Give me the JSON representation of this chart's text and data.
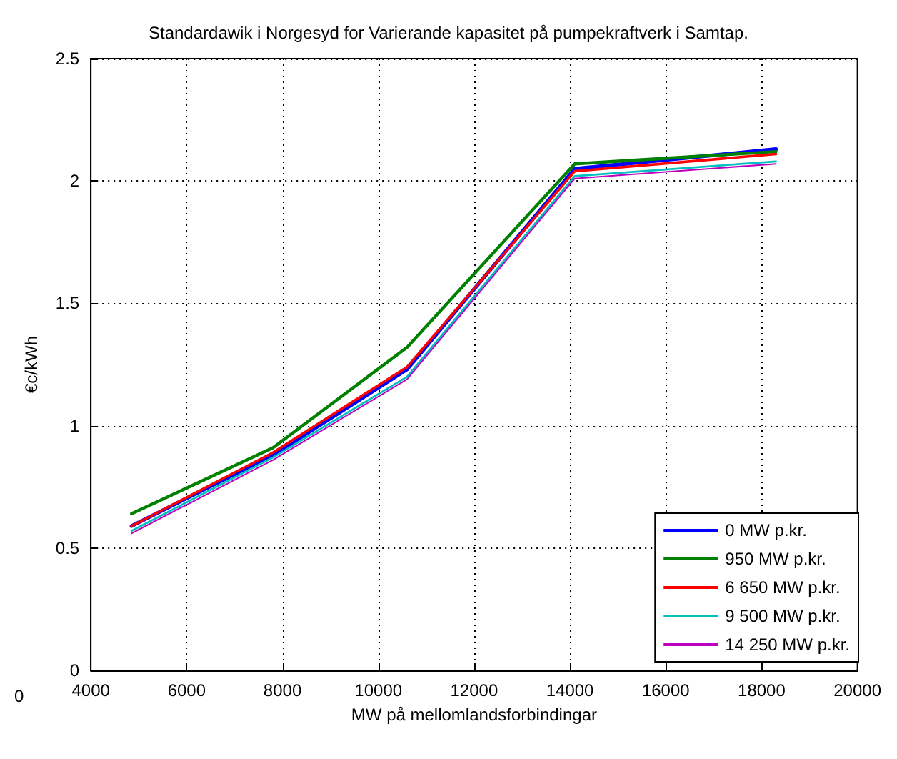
{
  "chart_data": {
    "type": "line",
    "title": "Standardawik i Norgesyd for Varierande kapasitet på pumpekraftverk i Samtap.",
    "xlabel": "MW på mellomlandsforbindingar",
    "ylabel": "€c/kWh",
    "x": [
      4850,
      7800,
      10600,
      14100,
      18300
    ],
    "series": [
      {
        "name": "0 MW p.kr.",
        "color": "#0000ff",
        "values": [
          0.59,
          0.88,
          1.23,
          2.05,
          2.13
        ]
      },
      {
        "name": "950 MW p.kr.",
        "color": "#008000",
        "values": [
          0.64,
          0.91,
          1.32,
          2.07,
          2.12
        ]
      },
      {
        "name": "6 650 MW p.kr.",
        "color": "#ff0000",
        "values": [
          0.59,
          0.89,
          1.24,
          2.04,
          2.11
        ]
      },
      {
        "name": "9 500 MW p.kr.",
        "color": "#00bfbf",
        "values": [
          0.57,
          0.87,
          1.2,
          2.02,
          2.08
        ]
      },
      {
        "name": "14 250 MW p.kr.",
        "color": "#bf00bf",
        "values": [
          0.56,
          0.86,
          1.19,
          2.01,
          2.07
        ]
      }
    ],
    "xlim": [
      4000,
      20000
    ],
    "xticks": [
      4000,
      6000,
      8000,
      10000,
      12000,
      14000,
      16000,
      18000,
      20000
    ],
    "ylim": [
      0,
      2.5
    ],
    "yticks": [
      0,
      0.5,
      1,
      1.5,
      2,
      2.5
    ],
    "grid": true,
    "legend": "bottom right",
    "marker": "none",
    "line_style": "solid",
    "annotations": [
      "0"
    ]
  }
}
